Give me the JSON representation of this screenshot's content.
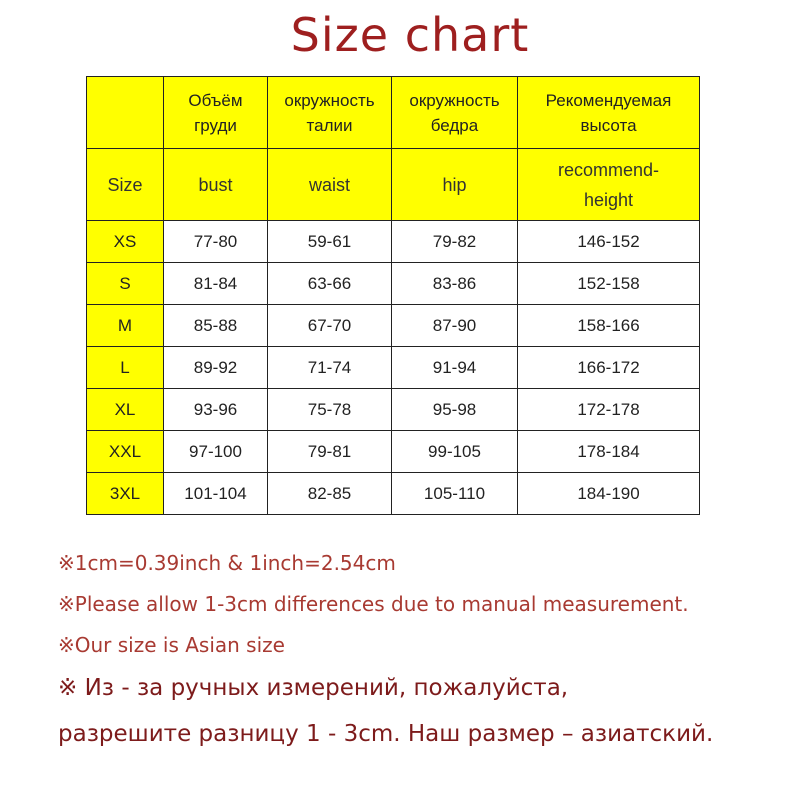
{
  "title": "Size chart",
  "colors": {
    "title": "#9e1f1f",
    "header_bg": "#ffff00",
    "note": "#a83a32"
  },
  "table": {
    "header_ru": [
      "",
      "Объём груди",
      "окружность талии",
      "окружность бедра",
      "Рекомендуемая высота"
    ],
    "header_en": [
      "Size",
      "bust",
      "waist",
      "hip",
      "recommend-height"
    ],
    "rows": [
      [
        "XS",
        "77-80",
        "59-61",
        "79-82",
        "146-152"
      ],
      [
        "S",
        "81-84",
        "63-66",
        "83-86",
        "152-158"
      ],
      [
        "M",
        "85-88",
        "67-70",
        "87-90",
        "158-166"
      ],
      [
        "L",
        "89-92",
        "71-74",
        "91-94",
        "166-172"
      ],
      [
        "XL",
        "93-96",
        "75-78",
        "95-98",
        "172-178"
      ],
      [
        "XXL",
        "97-100",
        "79-81",
        "99-105",
        "178-184"
      ],
      [
        "3XL",
        "101-104",
        "82-85",
        "105-110",
        "184-190"
      ]
    ]
  },
  "notes": [
    "※1cm=0.39inch & 1inch=2.54cm",
    "※Please allow 1-3cm differences due to manual measurement.",
    "※Our size is Asian size",
    "※ Из - за ручных измерений, пожалуйста,",
    "разрешите разницу 1 - 3cm. Наш размер – азиатский."
  ]
}
